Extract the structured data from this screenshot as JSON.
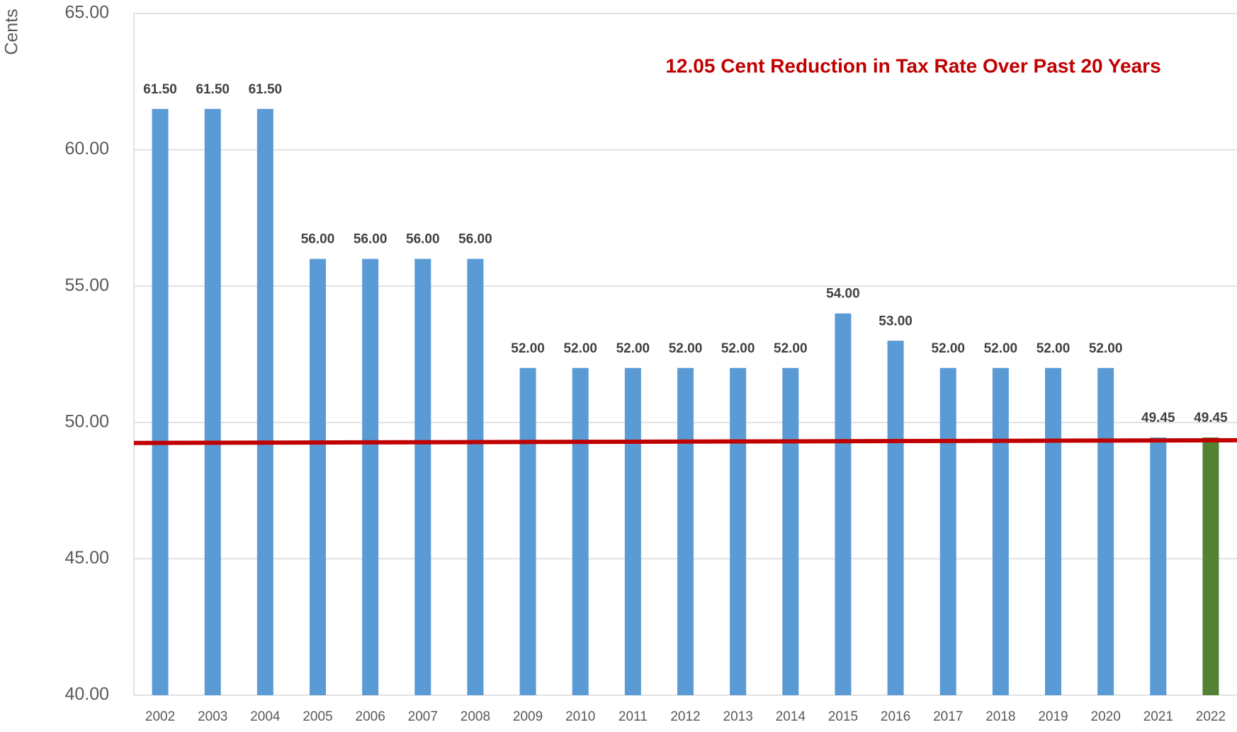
{
  "chart_data": {
    "type": "bar",
    "y_label": "Cents",
    "annotation": "12.05 Cent Reduction in Tax Rate Over Past 20 Years",
    "categories": [
      "2002",
      "2003",
      "2004",
      "2005",
      "2006",
      "2007",
      "2008",
      "2009",
      "2010",
      "2011",
      "2012",
      "2013",
      "2014",
      "2015",
      "2016",
      "2017",
      "2018",
      "2019",
      "2020",
      "2021",
      "2022"
    ],
    "values": [
      61.5,
      61.5,
      61.5,
      56,
      56,
      56,
      56,
      52,
      52,
      52,
      52,
      52,
      52,
      54,
      53,
      52,
      52,
      52,
      52,
      49.45,
      49.45
    ],
    "value_labels": [
      "61.50",
      "61.50",
      "61.50",
      "56.00",
      "56.00",
      "56.00",
      "56.00",
      "52.00",
      "52.00",
      "52.00",
      "52.00",
      "52.00",
      "52.00",
      "54.00",
      "53.00",
      "52.00",
      "52.00",
      "52.00",
      "52.00",
      "49.45",
      "49.45"
    ],
    "colors": [
      "#5b9bd5",
      "#5b9bd5",
      "#5b9bd5",
      "#5b9bd5",
      "#5b9bd5",
      "#5b9bd5",
      "#5b9bd5",
      "#5b9bd5",
      "#5b9bd5",
      "#5b9bd5",
      "#5b9bd5",
      "#5b9bd5",
      "#5b9bd5",
      "#5b9bd5",
      "#5b9bd5",
      "#5b9bd5",
      "#5b9bd5",
      "#5b9bd5",
      "#5b9bd5",
      "#5b9bd5",
      "#548235"
    ],
    "ylim": [
      40,
      65
    ],
    "yticks": [
      {
        "value": 40,
        "label": "40.00"
      },
      {
        "value": 45,
        "label": "45.00"
      },
      {
        "value": 50,
        "label": "50.00"
      },
      {
        "value": 55,
        "label": "55.00"
      },
      {
        "value": 60,
        "label": "60.00"
      },
      {
        "value": 65,
        "label": "65.00"
      }
    ],
    "grid": true,
    "reference_line": {
      "color": "#c00000",
      "values": [
        49.25,
        49.35
      ]
    }
  }
}
